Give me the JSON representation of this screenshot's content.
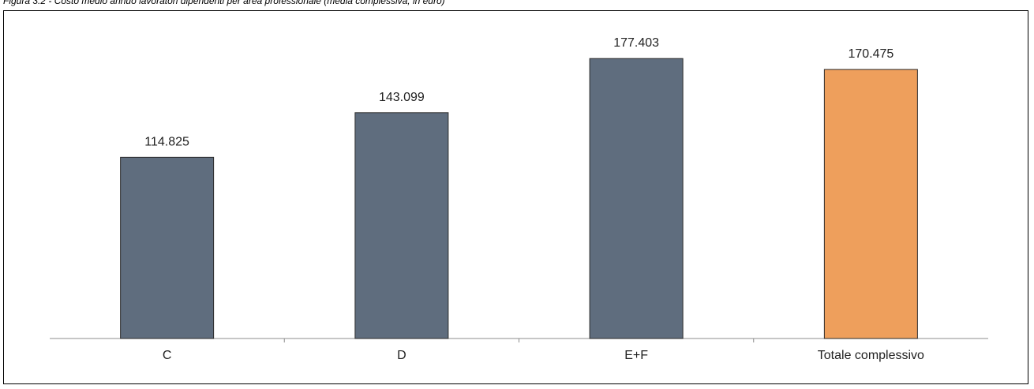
{
  "caption": "Figura 3.2 - Costo medio annuo lavoratori dipendenti per area professionale (media complessiva, in euro)",
  "chart_data": {
    "type": "bar",
    "categories": [
      "C",
      "D",
      "E+F",
      "Totale complessivo"
    ],
    "values": [
      114825,
      143099,
      177403,
      170475
    ],
    "value_labels": [
      "114.825",
      "143.099",
      "177.403",
      "170.475"
    ],
    "bar_colors": [
      "#5f6d7e",
      "#5f6d7e",
      "#5f6d7e",
      "#ee9f5c"
    ],
    "ylim": [
      0,
      200000
    ],
    "grid": false,
    "legend": "none"
  }
}
